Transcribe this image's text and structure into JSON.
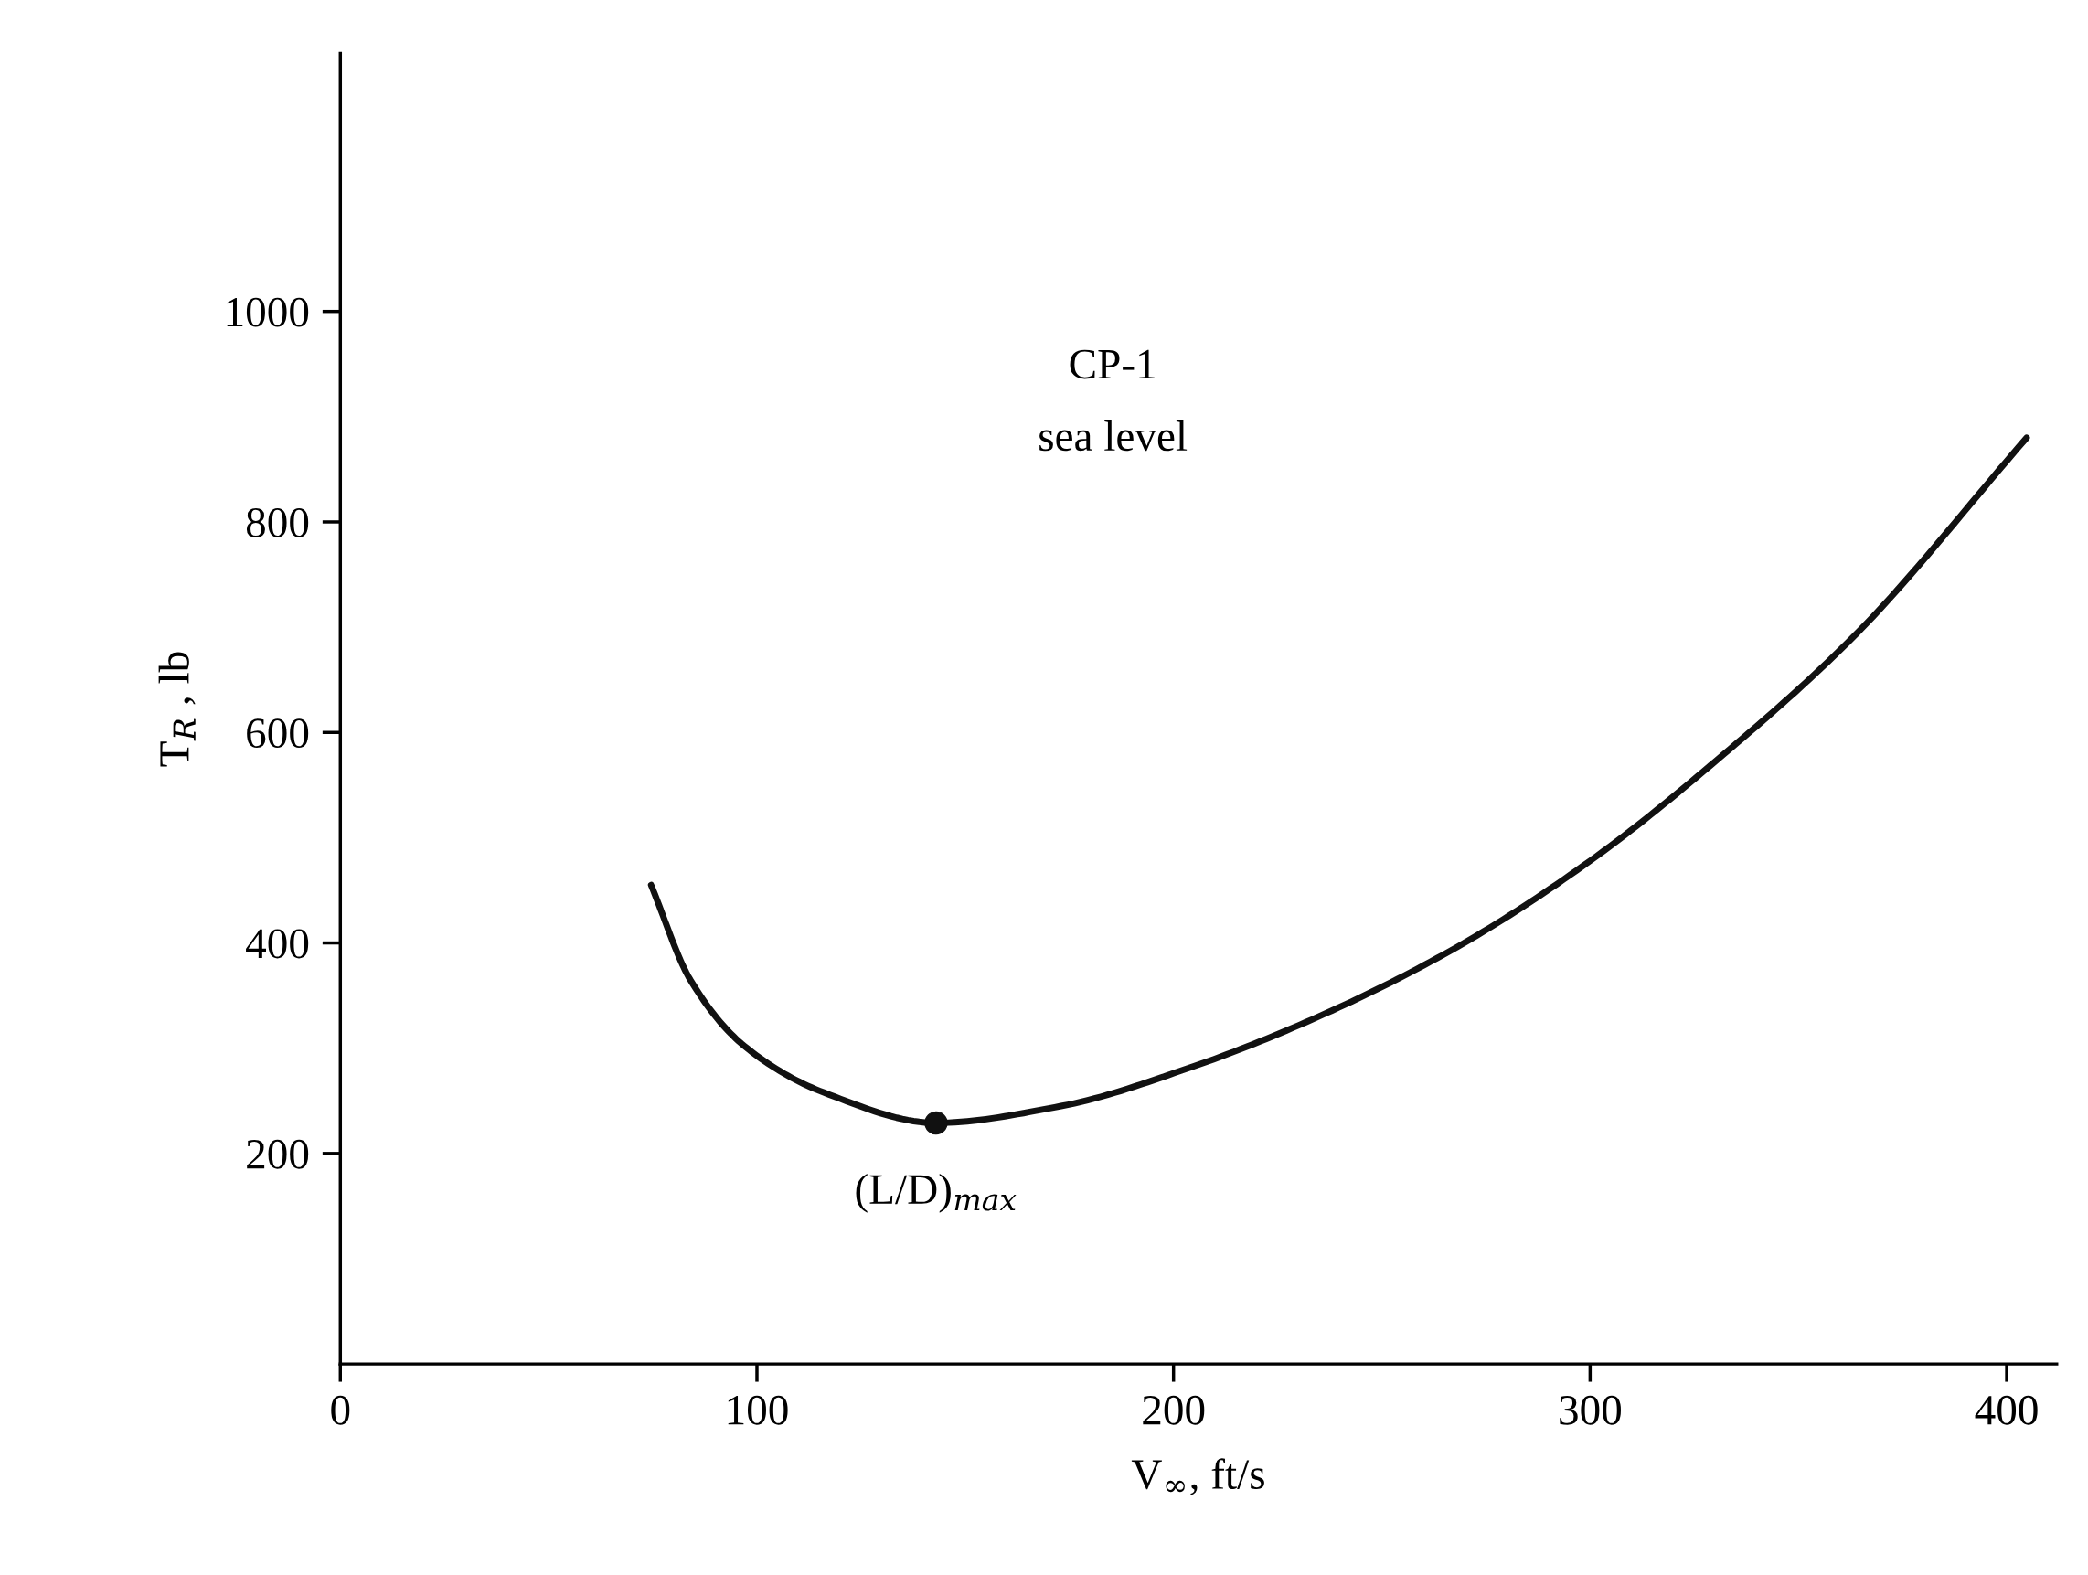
{
  "chart_data": {
    "type": "line",
    "xlabel": "V$_{∞}$, ft/s",
    "ylabel": "T$_{R}$ , lb",
    "xlim": [
      0,
      412
    ],
    "ylim": [
      0,
      1245
    ],
    "xticks": [
      0,
      100,
      200,
      300,
      400
    ],
    "yticks": [
      200,
      400,
      600,
      800,
      1000
    ],
    "grid": false,
    "legend": false,
    "series": [
      {
        "color": "#111111",
        "x": [
          74.6,
          84,
          97,
          116,
          143,
          173,
          205,
          236.5,
          268,
          300,
          332,
          363.5,
          404.8
        ],
        "values": [
          455,
          365,
          302,
          258,
          229,
          245,
          283,
          333,
          396,
          478,
          579,
          692,
          880
        ]
      },
      {
        "type": "scatter",
        "color": "#111111",
        "marker": "circle",
        "x": [
          143
        ],
        "values": [
          229
        ]
      }
    ],
    "annotations": [
      "CP-1",
      "sea level",
      {
        "text": "(L/D)$_{max}$",
        "x": 143,
        "y": 229
      }
    ]
  }
}
